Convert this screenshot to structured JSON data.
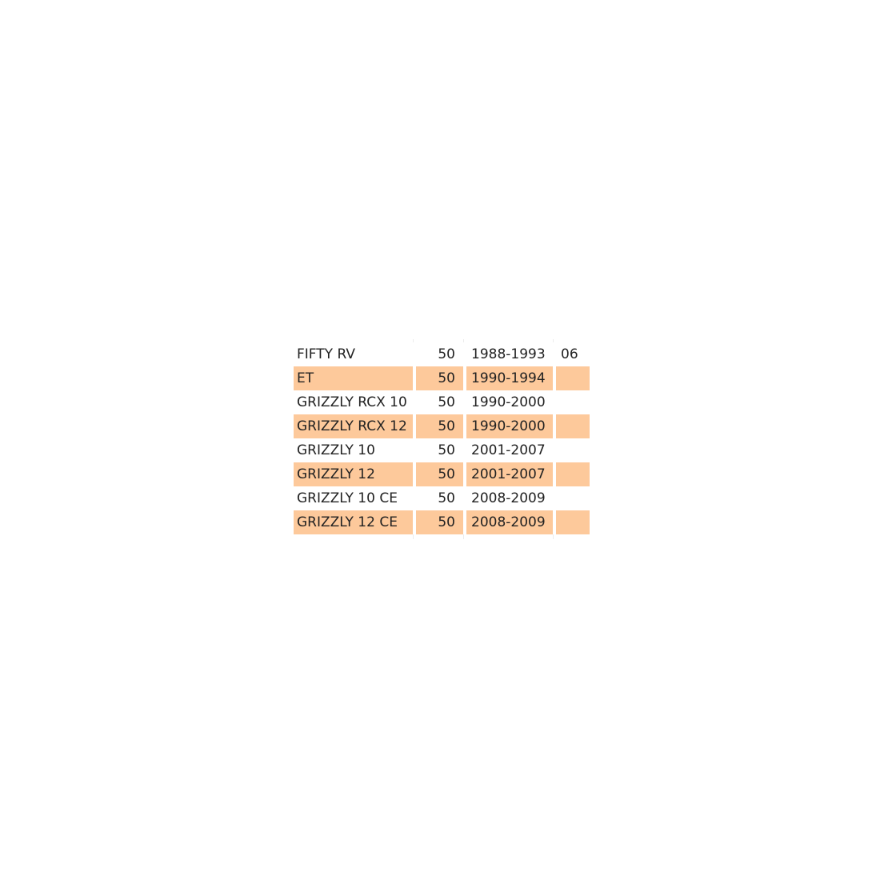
{
  "table": {
    "highlight_color": "#fdc99b",
    "rows": [
      {
        "model": "FIFTY RV",
        "cc": "50",
        "years": "1988-1993",
        "extra": "06"
      },
      {
        "model": "ET",
        "cc": "50",
        "years": "1990-1994",
        "extra": ""
      },
      {
        "model": "GRIZZLY RCX 10",
        "cc": "50",
        "years": "1990-2000",
        "extra": ""
      },
      {
        "model": "GRIZZLY RCX 12",
        "cc": "50",
        "years": "1990-2000",
        "extra": ""
      },
      {
        "model": "GRIZZLY 10",
        "cc": "50",
        "years": "2001-2007",
        "extra": ""
      },
      {
        "model": "GRIZZLY 12",
        "cc": "50",
        "years": "2001-2007",
        "extra": ""
      },
      {
        "model": "GRIZZLY 10 CE",
        "cc": "50",
        "years": "2008-2009",
        "extra": ""
      },
      {
        "model": "GRIZZLY 12 CE",
        "cc": "50",
        "years": "2008-2009",
        "extra": ""
      }
    ]
  }
}
